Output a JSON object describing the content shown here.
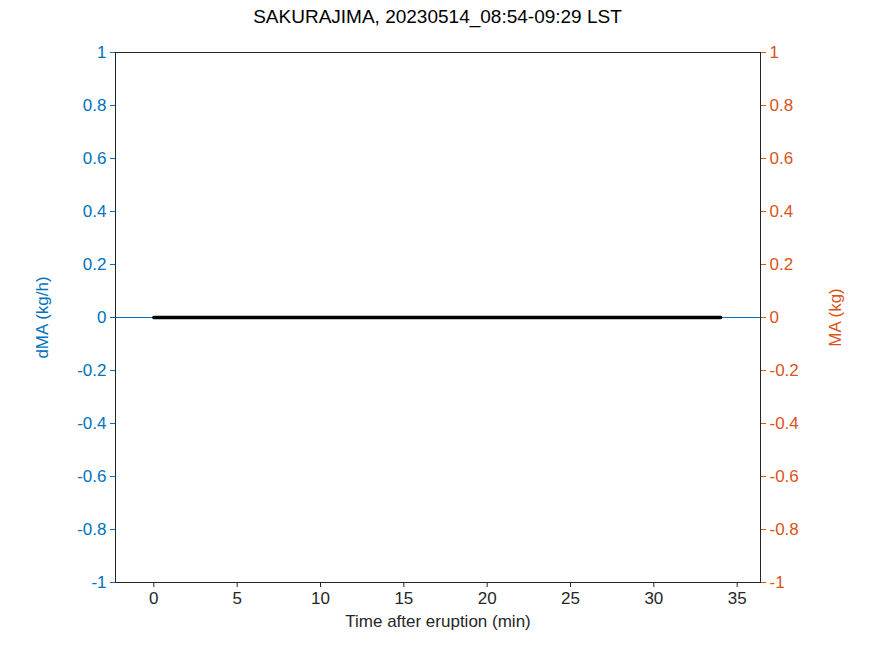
{
  "chart_data": {
    "type": "line",
    "title": "SAKURAJIMA, 20230514_08:54-09:29 LST",
    "x_label": "Time after eruption (min)",
    "y_label": "dMA (kg/h)",
    "y2_label": "MA (kg)",
    "xlim": [
      -2.3,
      36.4
    ],
    "xticks": [
      0,
      5,
      10,
      15,
      20,
      25,
      30,
      35
    ],
    "ylim": [
      -1,
      1
    ],
    "yticks": [
      -1,
      -0.8,
      -0.6,
      -0.4,
      -0.2,
      0,
      0.2,
      0.4,
      0.6,
      0.8,
      1
    ],
    "y2lim": [
      -1,
      1
    ],
    "y2ticks": [
      -1,
      -0.8,
      -0.6,
      -0.4,
      -0.2,
      0,
      0.2,
      0.4,
      0.6,
      0.8,
      1
    ],
    "y_color": "#0072BD",
    "y2_color": "#D95319",
    "series": [
      {
        "x": [
          -2.3,
          36.4
        ],
        "values": [
          0,
          0
        ],
        "color": "#0072BD"
      },
      {
        "x": [
          0,
          34
        ],
        "values": [
          0,
          0
        ],
        "color": "#000000",
        "axis": "y2"
      }
    ]
  }
}
